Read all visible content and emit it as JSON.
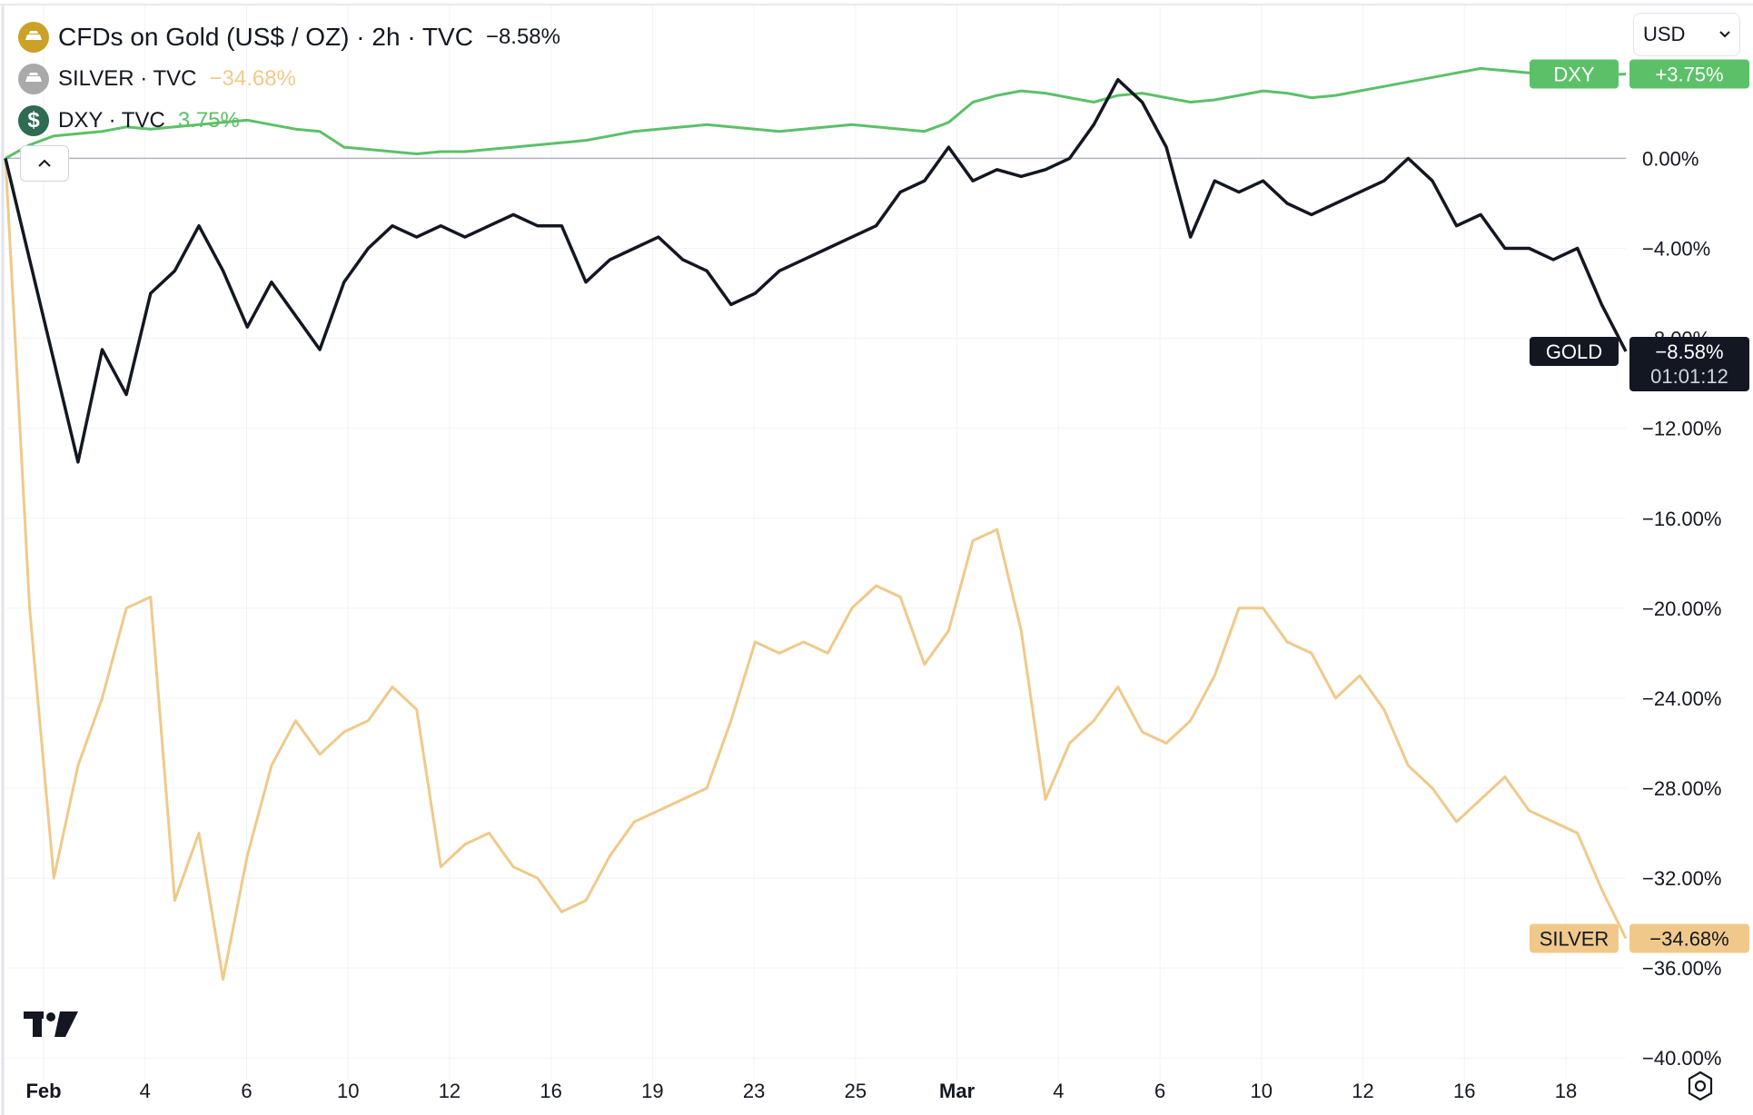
{
  "legend": [
    {
      "title": "CFDs on Gold (US$ / OZ) · 2h · TVC",
      "change": "−8.58%",
      "icon": "gold-bars-icon",
      "icon_color": "#c9a227",
      "change_color": "#131722"
    },
    {
      "title": "SILVER · TVC",
      "change": "−34.68%",
      "icon": "silver-bars-icon",
      "icon_color": "#a9a9a9",
      "change_color": "#f0c98a"
    },
    {
      "title": "DXY · TVC",
      "change": "3.75%",
      "icon": "dollar-icon",
      "icon_glyph": "$",
      "icon_color": "#2e6b53",
      "change_color": "#5cc068"
    }
  ],
  "currency": {
    "value": "USD"
  },
  "chart_data": {
    "type": "line",
    "ylabel": "",
    "x_tick_labels": [
      "Feb",
      "4",
      "6",
      "10",
      "12",
      "16",
      "19",
      "23",
      "25",
      "Mar",
      "4",
      "6",
      "10",
      "12",
      "16",
      "18"
    ],
    "y_tick_labels": [
      "0.00%",
      "−4.00%",
      "−8.00%",
      "−12.00%",
      "−16.00%",
      "−20.00%",
      "−24.00%",
      "−28.00%",
      "−32.00%",
      "−36.00%",
      "−40.00%"
    ],
    "y_ticks": [
      0,
      -4,
      -8,
      -12,
      -16,
      -20,
      -24,
      -28,
      -32,
      -36,
      -40
    ],
    "ylim": [
      -41.0,
      6.8
    ],
    "grid": true,
    "series": [
      {
        "name": "DXY",
        "color": "#5cc068",
        "last_value": "+3.75%",
        "values": [
          0.0,
          0.6,
          1.0,
          1.1,
          1.2,
          1.4,
          1.3,
          1.4,
          1.5,
          1.6,
          1.7,
          1.5,
          1.3,
          1.2,
          0.5,
          0.4,
          0.3,
          0.2,
          0.3,
          0.3,
          0.4,
          0.5,
          0.6,
          0.7,
          0.8,
          1.0,
          1.2,
          1.3,
          1.4,
          1.5,
          1.4,
          1.3,
          1.2,
          1.3,
          1.4,
          1.5,
          1.4,
          1.3,
          1.2,
          1.6,
          2.5,
          2.8,
          3.0,
          2.9,
          2.7,
          2.5,
          2.8,
          2.9,
          2.7,
          2.5,
          2.6,
          2.8,
          3.0,
          2.9,
          2.7,
          2.8,
          3.0,
          3.2,
          3.4,
          3.6,
          3.8,
          4.0,
          3.9,
          3.8,
          3.7,
          3.6,
          3.7,
          3.75
        ]
      },
      {
        "name": "GOLD",
        "color": "#131722",
        "last_value": "−8.58%",
        "countdown": "01:01:12",
        "values": [
          0.0,
          -4.5,
          -9.0,
          -13.5,
          -8.5,
          -10.5,
          -6.0,
          -5.0,
          -3.0,
          -5.0,
          -7.5,
          -5.5,
          -7.0,
          -8.5,
          -5.5,
          -4.0,
          -3.0,
          -3.5,
          -3.0,
          -3.5,
          -3.0,
          -2.5,
          -3.0,
          -3.0,
          -5.5,
          -4.5,
          -4.0,
          -3.5,
          -4.5,
          -5.0,
          -6.5,
          -6.0,
          -5.0,
          -4.5,
          -4.0,
          -3.5,
          -3.0,
          -1.5,
          -1.0,
          0.5,
          -1.0,
          -0.5,
          -0.8,
          -0.5,
          0.0,
          1.5,
          3.5,
          2.5,
          0.5,
          -3.5,
          -1.0,
          -1.5,
          -1.0,
          -2.0,
          -2.5,
          -2.0,
          -1.5,
          -1.0,
          0.0,
          -1.0,
          -3.0,
          -2.5,
          -4.0,
          -4.0,
          -4.5,
          -4.0,
          -6.5,
          -8.58
        ]
      },
      {
        "name": "SILVER",
        "color": "#f0c98a",
        "last_value": "−34.68%",
        "values": [
          0.0,
          -20.0,
          -32.0,
          -27.0,
          -24.0,
          -20.0,
          -19.5,
          -33.0,
          -30.0,
          -36.5,
          -31.0,
          -27.0,
          -25.0,
          -26.5,
          -25.5,
          -25.0,
          -23.5,
          -24.5,
          -31.5,
          -30.5,
          -30.0,
          -31.5,
          -32.0,
          -33.5,
          -33.0,
          -31.0,
          -29.5,
          -29.0,
          -28.5,
          -28.0,
          -25.0,
          -21.5,
          -22.0,
          -21.5,
          -22.0,
          -20.0,
          -19.0,
          -19.5,
          -22.5,
          -21.0,
          -17.0,
          -16.5,
          -21.0,
          -28.5,
          -26.0,
          -25.0,
          -23.5,
          -25.5,
          -26.0,
          -25.0,
          -23.0,
          -20.0,
          -20.0,
          -21.5,
          -22.0,
          -24.0,
          -23.0,
          -24.5,
          -27.0,
          -28.0,
          -29.5,
          -28.5,
          -27.5,
          -29.0,
          -29.5,
          -30.0,
          -32.5,
          -34.68
        ]
      }
    ]
  }
}
